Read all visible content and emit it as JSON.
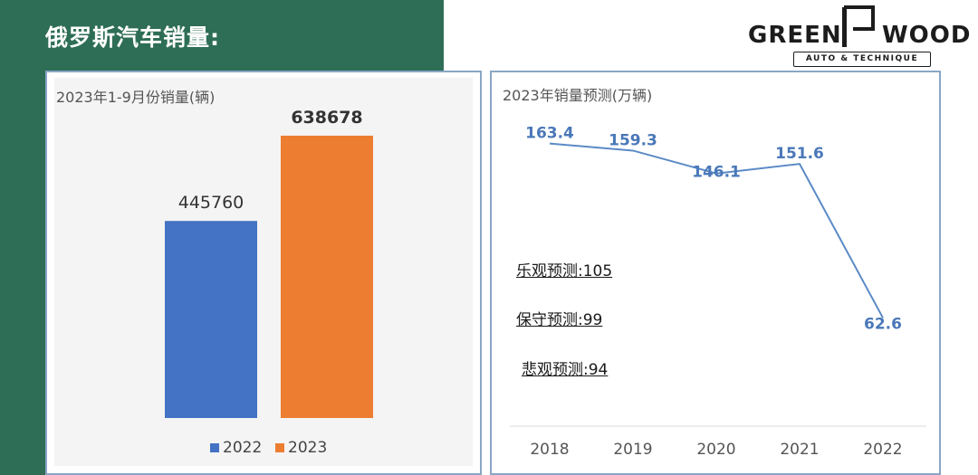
{
  "page": {
    "title": "俄罗斯汽车销量:"
  },
  "logo": {
    "word_left": "GREEN",
    "word_right": "WOOD",
    "tagline": "AUTO & TECHNIQUE"
  },
  "forecasts": [
    {
      "label": "乐观预测:105"
    },
    {
      "label": "保守预测:99"
    },
    {
      "label": "悲观预测:94"
    }
  ],
  "colors": {
    "background_green": "#2f6e56",
    "bar_2022": "#4472c4",
    "bar_2023": "#ed7d31",
    "line": "#5b8ac6",
    "panel_border": "#8aa6c6"
  },
  "chart_data": [
    {
      "type": "bar",
      "title": "2023年1-9月份销量(辆)",
      "categories": [
        "2022",
        "2023"
      ],
      "values": [
        445760,
        638678
      ],
      "data_labels": [
        "445760",
        "638678"
      ],
      "legend": [
        "2022",
        "2023"
      ],
      "legend_position": "bottom",
      "ylim": [
        0,
        700000
      ],
      "grid": false
    },
    {
      "type": "line",
      "title": "2023年销量预测(万辆)",
      "x": [
        "2018",
        "2019",
        "2020",
        "2021",
        "2022"
      ],
      "y": [
        163.4,
        159.3,
        146.1,
        151.6,
        62.6
      ],
      "data_labels": [
        "163.4",
        "159.3",
        "146.1",
        "151.6",
        "62.6"
      ],
      "ylim": [
        0,
        170
      ],
      "grid": false
    }
  ]
}
